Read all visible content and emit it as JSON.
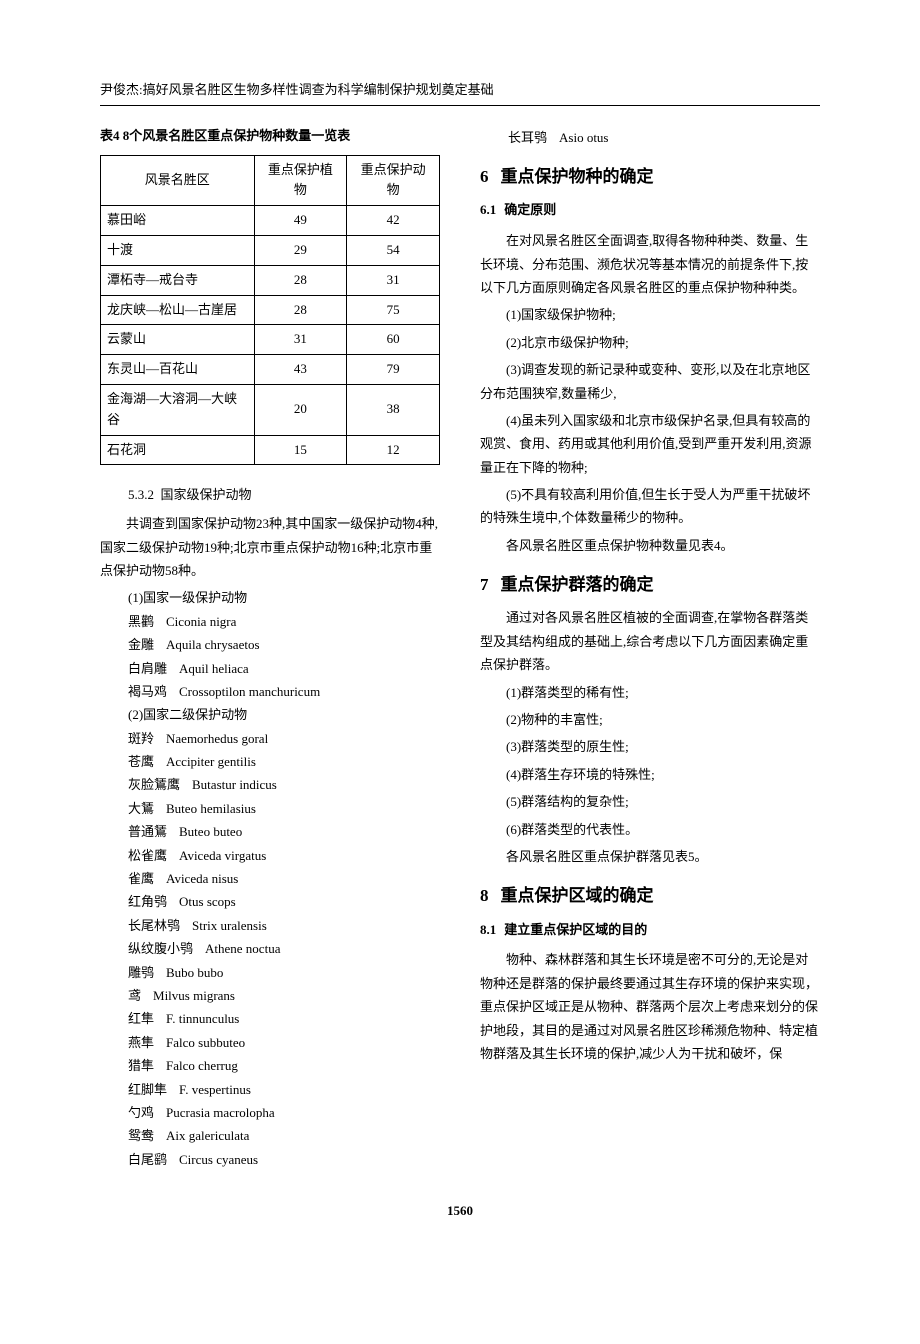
{
  "header": "尹俊杰:搞好风景名胜区生物多样性调查为科学编制保护规划奠定基础",
  "table4": {
    "title": "表4  8个风景名胜区重点保护物种数量一览表",
    "columns": [
      "风景名胜区",
      "重点保护植物",
      "重点保护动物"
    ],
    "rows": [
      [
        "慕田峪",
        "49",
        "42"
      ],
      [
        "十渡",
        "29",
        "54"
      ],
      [
        "潭柘寺—戒台寺",
        "28",
        "31"
      ],
      [
        "龙庆峡—松山—古崖居",
        "28",
        "75"
      ],
      [
        "云蒙山",
        "31",
        "60"
      ],
      [
        "东灵山—百花山",
        "43",
        "79"
      ],
      [
        "金海湖—大溶洞—大峡谷",
        "20",
        "38"
      ],
      [
        "石花洞",
        "15",
        "12"
      ]
    ]
  },
  "sec532": {
    "num": "5.3.2",
    "title": "国家级保护动物",
    "intro": "共调查到国家保护动物23种,其中国家一级保护动物4种,国家二级保护动物19种;北京市重点保护动物16种;北京市重点保护动物58种。",
    "group1_title": "(1)国家一级保护动物",
    "group1": [
      {
        "cn": "黑鹳",
        "la": "Ciconia nigra"
      },
      {
        "cn": "金雕",
        "la": "Aquila chrysaetos"
      },
      {
        "cn": "白肩雕",
        "la": "Aquil heliaca"
      },
      {
        "cn": "褐马鸡",
        "la": "Crossoptilon manchuricum"
      }
    ],
    "group2_title": "(2)国家二级保护动物",
    "group2": [
      {
        "cn": "斑羚",
        "la": "Naemorhedus goral"
      },
      {
        "cn": "苍鹰",
        "la": "Accipiter gentilis"
      },
      {
        "cn": "灰脸鵟鹰",
        "la": "Butastur indicus"
      },
      {
        "cn": "大鵟",
        "la": "Buteo hemilasius"
      },
      {
        "cn": "普通鵟",
        "la": "Buteo buteo"
      },
      {
        "cn": "松雀鹰",
        "la": "Aviceda virgatus"
      },
      {
        "cn": "雀鹰",
        "la": "Aviceda nisus"
      },
      {
        "cn": "红角鸮",
        "la": "Otus scops"
      },
      {
        "cn": "长尾林鸮",
        "la": "Strix uralensis"
      },
      {
        "cn": "纵纹腹小鸮",
        "la": "Athene noctua"
      },
      {
        "cn": "雕鸮",
        "la": "Bubo bubo"
      },
      {
        "cn": "鸢",
        "la": "Milvus migrans"
      },
      {
        "cn": "红隼",
        "la": "F. tinnunculus"
      },
      {
        "cn": "燕隼",
        "la": "Falco subbuteo"
      },
      {
        "cn": "猎隼",
        "la": "Falco cherrug"
      },
      {
        "cn": "红脚隼",
        "la": "F. vespertinus"
      },
      {
        "cn": "勺鸡",
        "la": "Pucrasia macrolopha"
      },
      {
        "cn": "鸳鸯",
        "la": "Aix galericulata"
      },
      {
        "cn": "白尾鹞",
        "la": "Circus cyaneus"
      }
    ]
  },
  "right_top_species": {
    "cn": "长耳鸮",
    "la": "Asio otus"
  },
  "sec6": {
    "num": "6",
    "title": "重点保护物种的确定",
    "sub61_num": "6.1",
    "sub61_title": "确定原则",
    "intro": "在对风景名胜区全面调查,取得各物种种类、数量、生长环境、分布范围、濒危状况等基本情况的前提条件下,按以下几方面原则确定各风景名胜区的重点保护物种种类。",
    "items": [
      "(1)国家级保护物种;",
      "(2)北京市级保护物种;",
      "(3)调查发现的新记录种或变种、变形,以及在北京地区分布范围狭窄,数量稀少,",
      "(4)虽未列入国家级和北京市级保护名录,但具有较高的观赏、食用、药用或其他利用价值,受到严重开发利用,资源量正在下降的物种;",
      "(5)不具有较高利用价值,但生长于受人为严重干扰破坏的特殊生境中,个体数量稀少的物种。"
    ],
    "outro": "各风景名胜区重点保护物种数量见表4。"
  },
  "sec7": {
    "num": "7",
    "title": "重点保护群落的确定",
    "intro": "通过对各风景名胜区植被的全面调查,在掌物各群落类型及其结构组成的基础上,综合考虑以下几方面因素确定重点保护群落。",
    "items": [
      "(1)群落类型的稀有性;",
      "(2)物种的丰富性;",
      "(3)群落类型的原生性;",
      "(4)群落生存环境的特殊性;",
      "(5)群落结构的复杂性;",
      "(6)群落类型的代表性。"
    ],
    "outro": "各风景名胜区重点保护群落见表5。"
  },
  "sec8": {
    "num": "8",
    "title": "重点保护区域的确定",
    "sub81_num": "8.1",
    "sub81_title": "建立重点保护区域的目的",
    "body": "物种、森林群落和其生长环境是密不可分的,无论是对物种还是群落的保护最终要通过其生存环境的保护来实现，重点保护区域正是从物种、群落两个层次上考虑来划分的保护地段，其目的是通过对风景名胜区珍稀濒危物种、特定植物群落及其生长环境的保护,减少人为干扰和破坏，保"
  },
  "page_number": "1560"
}
